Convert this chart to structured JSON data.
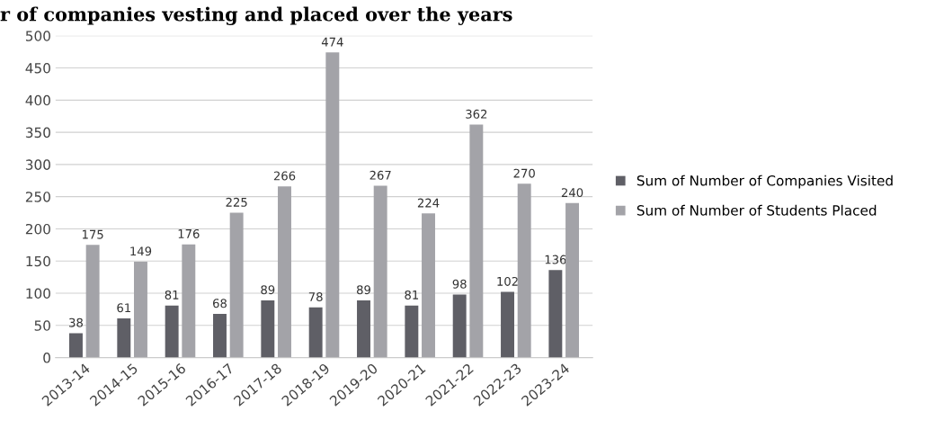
{
  "chart_data": {
    "type": "bar",
    "title": "r of companies vesting and placed over the years",
    "categories": [
      "2013-14",
      "2014-15",
      "2015-16",
      "2016-17",
      "2017-18",
      "2018-19",
      "2019-20",
      "2020-21",
      "2021-22",
      "2022-23",
      "2023-24"
    ],
    "series": [
      {
        "name": "Sum of Number of Companies Visited",
        "color": "#5f5f66",
        "values": [
          38,
          61,
          81,
          68,
          89,
          78,
          89,
          81,
          98,
          102,
          136
        ]
      },
      {
        "name": "Sum of Number of Students Placed",
        "color": "#a3a3a8",
        "values": [
          175,
          149,
          176,
          225,
          266,
          474,
          267,
          224,
          362,
          270,
          240
        ]
      }
    ],
    "ylim": [
      0,
      500
    ],
    "yticks": [
      0,
      50,
      100,
      150,
      200,
      250,
      300,
      350,
      400,
      450,
      500
    ],
    "grid": "y",
    "legend": "right",
    "data_labels": true
  }
}
